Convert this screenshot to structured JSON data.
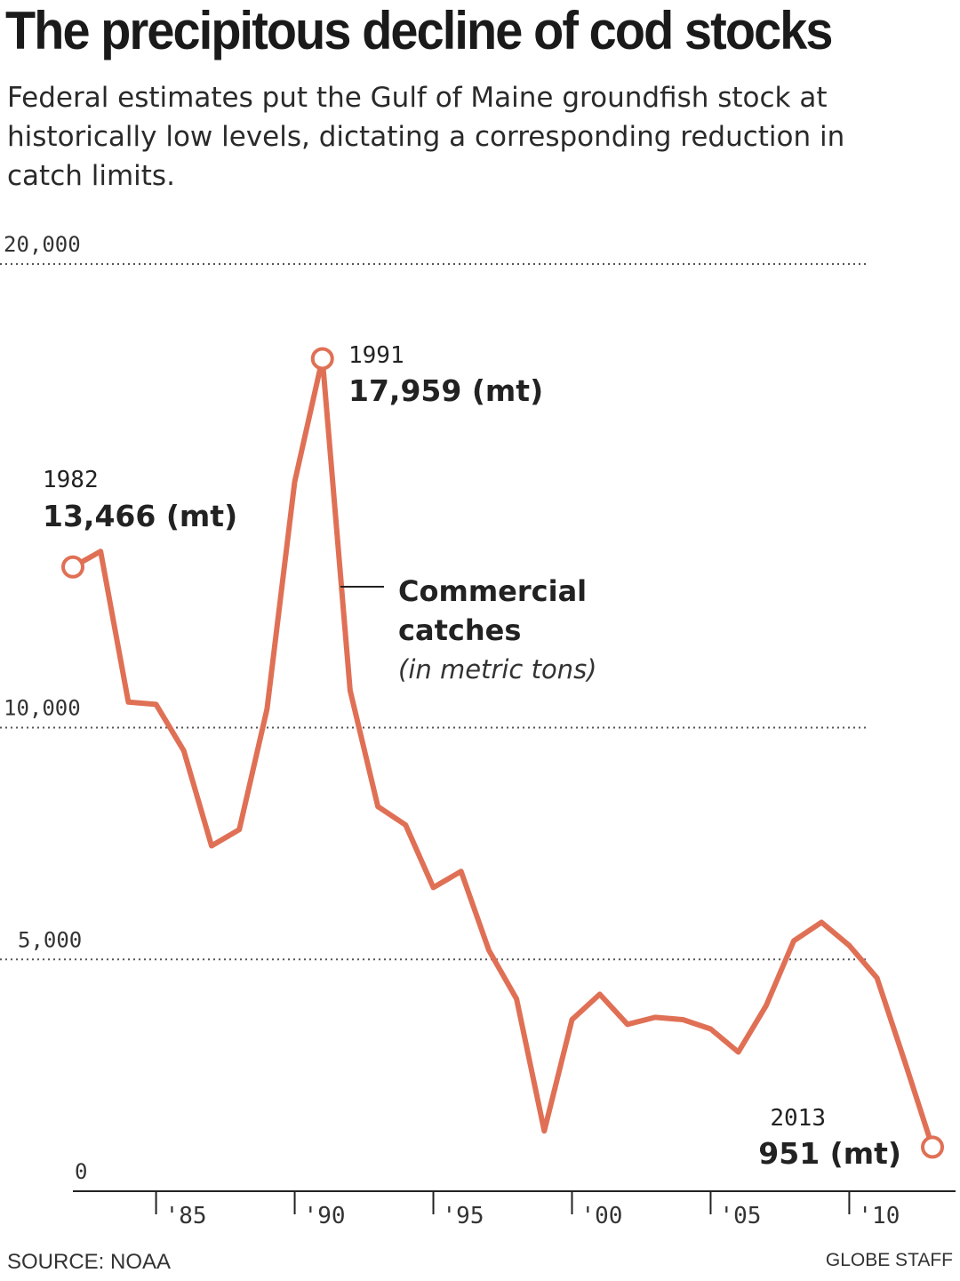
{
  "header": {
    "title": "The precipitous decline of cod stocks",
    "subtitle": "Federal estimates put the Gulf of Maine groundfish stock at historically low levels, dictating a corresponding reduction in catch limits."
  },
  "footer": {
    "source": "SOURCE: NOAA",
    "credit": "GLOBE STAFF"
  },
  "colors": {
    "line": "#e07055",
    "grid": "#555555",
    "text": "#222222"
  },
  "chart_data": {
    "type": "line",
    "title": "The precipitous decline of cod stocks",
    "xlabel": "",
    "ylabel": "",
    "xlim": [
      1982,
      2013
    ],
    "ylim": [
      0,
      20000
    ],
    "grid": true,
    "y_ticks": [
      {
        "value": 0,
        "label": "0"
      },
      {
        "value": 5000,
        "label": "5,000"
      },
      {
        "value": 10000,
        "label": "10,000"
      },
      {
        "value": 20000,
        "label": "20,000"
      }
    ],
    "x_ticks": [
      {
        "value": 1985,
        "label": "'85"
      },
      {
        "value": 1990,
        "label": "'90"
      },
      {
        "value": 1995,
        "label": "'95"
      },
      {
        "value": 2000,
        "label": "'00"
      },
      {
        "value": 2005,
        "label": "'05"
      },
      {
        "value": 2010,
        "label": "'10"
      }
    ],
    "series": [
      {
        "name": "Commercial catches",
        "unit": "(in metric tons)",
        "x": [
          1982,
          1983,
          1984,
          1985,
          1986,
          1987,
          1988,
          1989,
          1990,
          1991,
          1992,
          1993,
          1994,
          1995,
          1996,
          1997,
          1998,
          1999,
          2000,
          2001,
          2002,
          2003,
          2004,
          2005,
          2006,
          2007,
          2008,
          2009,
          2010,
          2011,
          2012,
          2013
        ],
        "y": [
          13466,
          13800,
          10550,
          10500,
          9500,
          7450,
          7800,
          10400,
          15300,
          17959,
          10800,
          8300,
          7900,
          6550,
          6900,
          5200,
          4150,
          1300,
          3700,
          4250,
          3600,
          3750,
          3700,
          3500,
          3000,
          4000,
          5400,
          5800,
          5300,
          4600,
          2800,
          951
        ]
      }
    ],
    "annotations": [
      {
        "x": 1982,
        "y": 13466,
        "year": "1982",
        "value": "13,466 (mt)"
      },
      {
        "x": 1991,
        "y": 17959,
        "year": "1991",
        "value": "17,959 (mt)"
      },
      {
        "x": 2013,
        "y": 951,
        "year": "2013",
        "value": "951 (mt)"
      }
    ],
    "legend": {
      "label_line1": "Commercial",
      "label_line2": "catches",
      "unit": "(in metric tons)"
    }
  }
}
